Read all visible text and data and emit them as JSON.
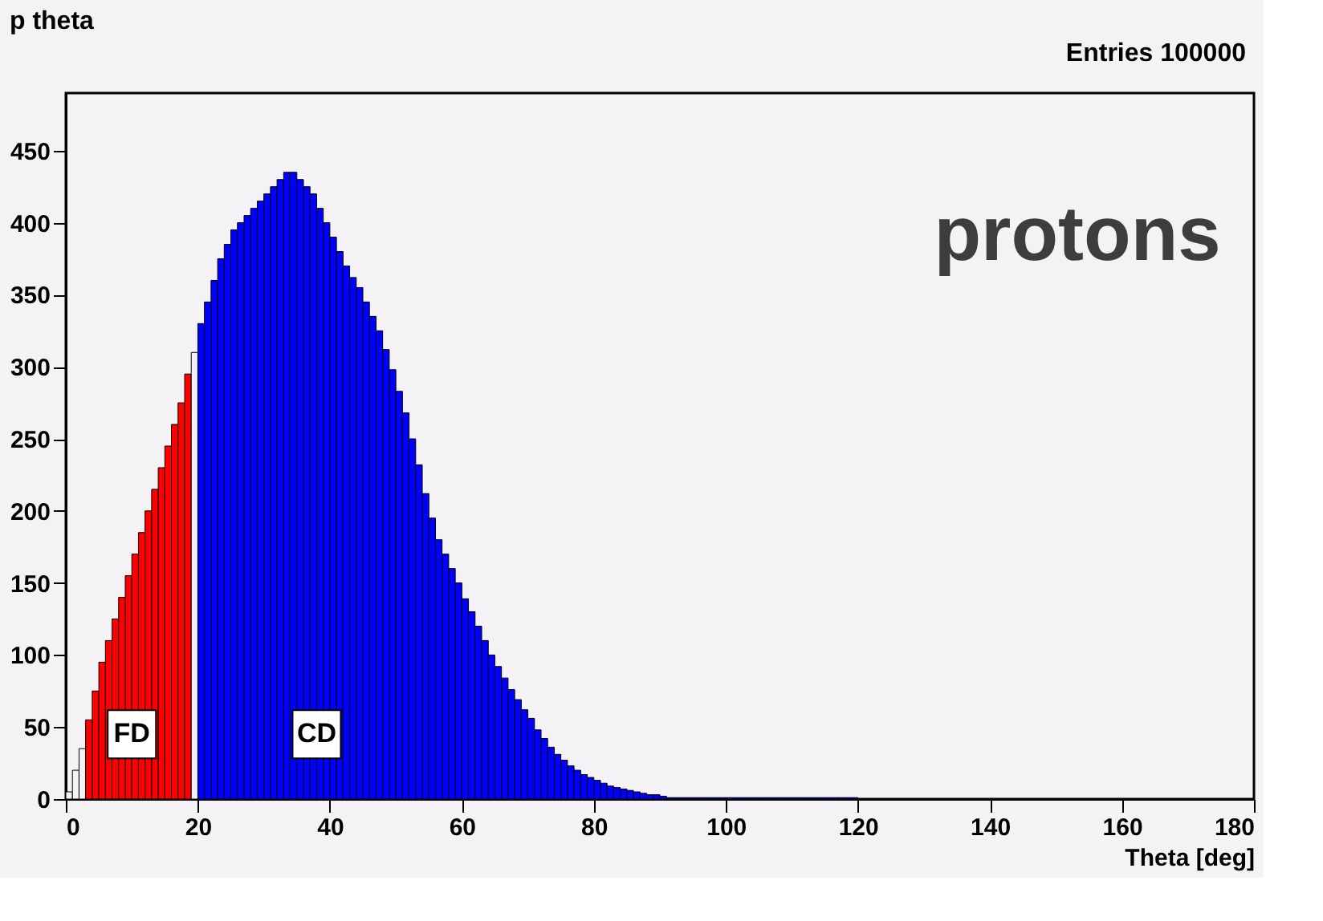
{
  "chart_data": {
    "type": "histogram",
    "title": "p theta",
    "xlabel": "Theta [deg]",
    "annotations": [
      "Entries  100000",
      "protons",
      {
        "text": "FD",
        "x": 10,
        "y": 45
      },
      {
        "text": "CD",
        "x": 38,
        "y": 45
      }
    ],
    "bins": [
      0,
      1,
      2,
      3,
      4,
      5,
      6,
      7,
      8,
      9,
      10,
      11,
      12,
      13,
      14,
      15,
      16,
      17,
      18,
      19,
      20,
      21,
      22,
      23,
      24,
      25,
      26,
      27,
      28,
      29,
      30,
      31,
      32,
      33,
      34,
      35,
      36,
      37,
      38,
      39,
      40,
      41,
      42,
      43,
      44,
      45,
      46,
      47,
      48,
      49,
      50,
      51,
      52,
      53,
      54,
      55,
      56,
      57,
      58,
      59,
      60,
      61,
      62,
      63,
      64,
      65,
      66,
      67,
      68,
      69,
      70,
      71,
      72,
      73,
      74,
      75,
      76,
      77,
      78,
      79,
      80,
      81,
      82,
      83,
      84,
      85,
      86,
      87,
      88,
      89,
      90,
      91,
      92,
      93,
      94,
      95,
      96,
      97,
      98,
      99,
      100,
      101,
      102,
      103,
      104,
      105,
      106,
      107,
      108,
      109,
      110,
      111,
      112,
      113,
      114,
      115,
      116,
      117,
      118,
      119,
      120
    ],
    "values": [
      5,
      20,
      35,
      55,
      75,
      95,
      110,
      125,
      140,
      155,
      170,
      185,
      200,
      215,
      230,
      245,
      260,
      275,
      295,
      310,
      330,
      345,
      360,
      375,
      385,
      395,
      400,
      405,
      410,
      415,
      420,
      425,
      430,
      435,
      435,
      430,
      425,
      420,
      410,
      400,
      390,
      380,
      370,
      362,
      355,
      345,
      335,
      325,
      312,
      298,
      283,
      268,
      250,
      232,
      212,
      195,
      180,
      170,
      160,
      150,
      139,
      130,
      120,
      110,
      100,
      92,
      84,
      76,
      69,
      62,
      56,
      48,
      42,
      36,
      31,
      27,
      23,
      20,
      17,
      15,
      13,
      11,
      9,
      8,
      7,
      6,
      5,
      4,
      3,
      3,
      2,
      1,
      1,
      1,
      1,
      1,
      1,
      1,
      1,
      1,
      1,
      1,
      1,
      1,
      1,
      1,
      1,
      1,
      1,
      1,
      1,
      1,
      1,
      1,
      1,
      1,
      1,
      1,
      1,
      1
    ],
    "colors": [
      "#f5f2f5",
      "#f5f2f5",
      "#f5f2f5",
      "#ff0000",
      "#ff0000",
      "#ff0000",
      "#ff0000",
      "#ff0000",
      "#ff0000",
      "#ff0000",
      "#ff0000",
      "#ff0000",
      "#ff0000",
      "#ff0000",
      "#ff0000",
      "#ff0000",
      "#ff0000",
      "#ff0000",
      "#ff0000",
      "#f5f2f5",
      "#0000ff",
      "#0000ff",
      "#0000ff",
      "#0000ff",
      "#0000ff",
      "#0000ff",
      "#0000ff",
      "#0000ff",
      "#0000ff",
      "#0000ff",
      "#0000ff",
      "#0000ff",
      "#0000ff",
      "#0000ff",
      "#0000ff",
      "#0000ff",
      "#0000ff",
      "#0000ff",
      "#0000ff",
      "#0000ff",
      "#0000ff",
      "#0000ff",
      "#0000ff",
      "#0000ff",
      "#0000ff",
      "#0000ff",
      "#0000ff",
      "#0000ff",
      "#0000ff",
      "#0000ff",
      "#0000ff",
      "#0000ff",
      "#0000ff",
      "#0000ff",
      "#0000ff",
      "#0000ff",
      "#0000ff",
      "#0000ff",
      "#0000ff",
      "#0000ff",
      "#0000ff",
      "#0000ff",
      "#0000ff",
      "#0000ff",
      "#0000ff",
      "#0000ff",
      "#0000ff",
      "#0000ff",
      "#0000ff",
      "#0000ff",
      "#0000ff",
      "#0000ff",
      "#0000ff",
      "#0000ff",
      "#0000ff",
      "#0000ff",
      "#0000ff",
      "#0000ff",
      "#0000ff",
      "#0000ff",
      "#0000ff",
      "#0000ff",
      "#0000ff",
      "#0000ff",
      "#0000ff",
      "#0000ff",
      "#0000ff",
      "#0000ff",
      "#0000ff",
      "#0000ff",
      "#0000ff",
      "#0000ff",
      "#0000ff",
      "#0000ff",
      "#0000ff",
      "#0000ff",
      "#0000ff",
      "#0000ff",
      "#0000ff",
      "#0000ff",
      "#0000ff",
      "#0000ff",
      "#0000ff",
      "#0000ff",
      "#0000ff",
      "#0000ff",
      "#0000ff",
      "#0000ff",
      "#0000ff",
      "#0000ff",
      "#0000ff",
      "#0000ff",
      "#0000ff",
      "#0000ff",
      "#0000ff",
      "#0000ff",
      "#0000ff",
      "#0000ff",
      "#0000ff",
      "#0000ff"
    ],
    "xlim": [
      0,
      180
    ],
    "ylim": [
      0,
      490
    ],
    "xticks": [
      0,
      20,
      40,
      60,
      80,
      100,
      120,
      140,
      160,
      180
    ],
    "yticks": [
      0,
      50,
      100,
      150,
      200,
      250,
      300,
      350,
      400,
      450
    ],
    "grid": false
  }
}
